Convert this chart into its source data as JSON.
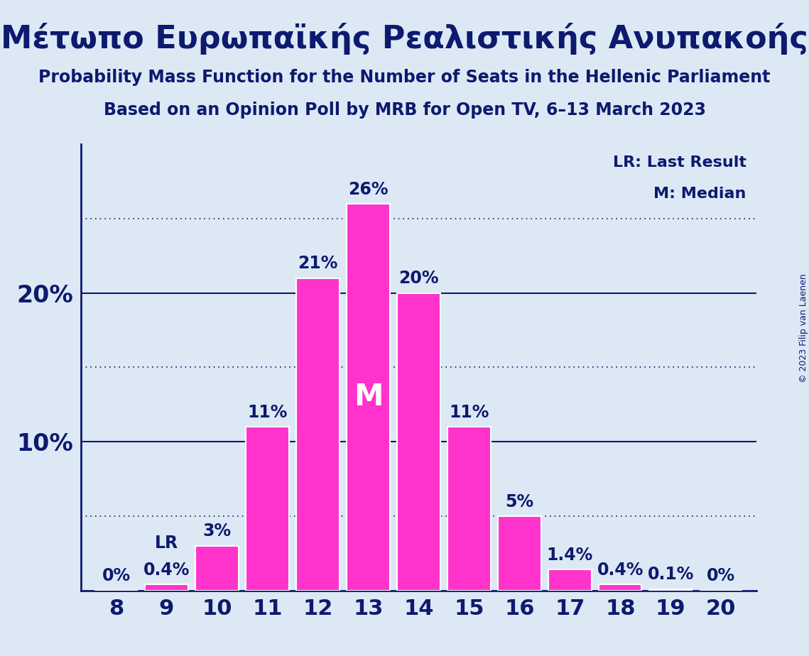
{
  "title1": "Μέτωπο Ευρωπαϊκής Ρεαλιστικής Ανυπακοής",
  "title2": "Probability Mass Function for the Number of Seats in the Hellenic Parliament",
  "title3": "Based on an Opinion Poll by MRB for Open TV, 6–13 March 2023",
  "copyright": "© 2023 Filip van Laenen",
  "categories": [
    8,
    9,
    10,
    11,
    12,
    13,
    14,
    15,
    16,
    17,
    18,
    19,
    20
  ],
  "values": [
    0.0,
    0.4,
    3.0,
    11.0,
    21.0,
    26.0,
    20.0,
    11.0,
    5.0,
    1.4,
    0.4,
    0.1,
    0.0
  ],
  "bar_color": "#FF33CC",
  "bar_edge_color": "#FFFFFF",
  "background_color": "#DCE9F5",
  "text_color": "#0D1A6E",
  "median_seat": 13,
  "last_result_seat": 9,
  "solid_gridlines": [
    10,
    20
  ],
  "dotted_gridlines": [
    5,
    15,
    25
  ],
  "legend_lr": "LR: Last Result",
  "legend_m": "M: Median",
  "ylim": [
    0,
    30
  ],
  "bar_width": 0.85,
  "title1_fontsize": 32,
  "title2_fontsize": 17,
  "title3_fontsize": 17,
  "label_fontsize": 17,
  "tick_fontsize": 22,
  "ytick_fontsize": 24,
  "legend_fontsize": 16,
  "m_fontsize": 30
}
